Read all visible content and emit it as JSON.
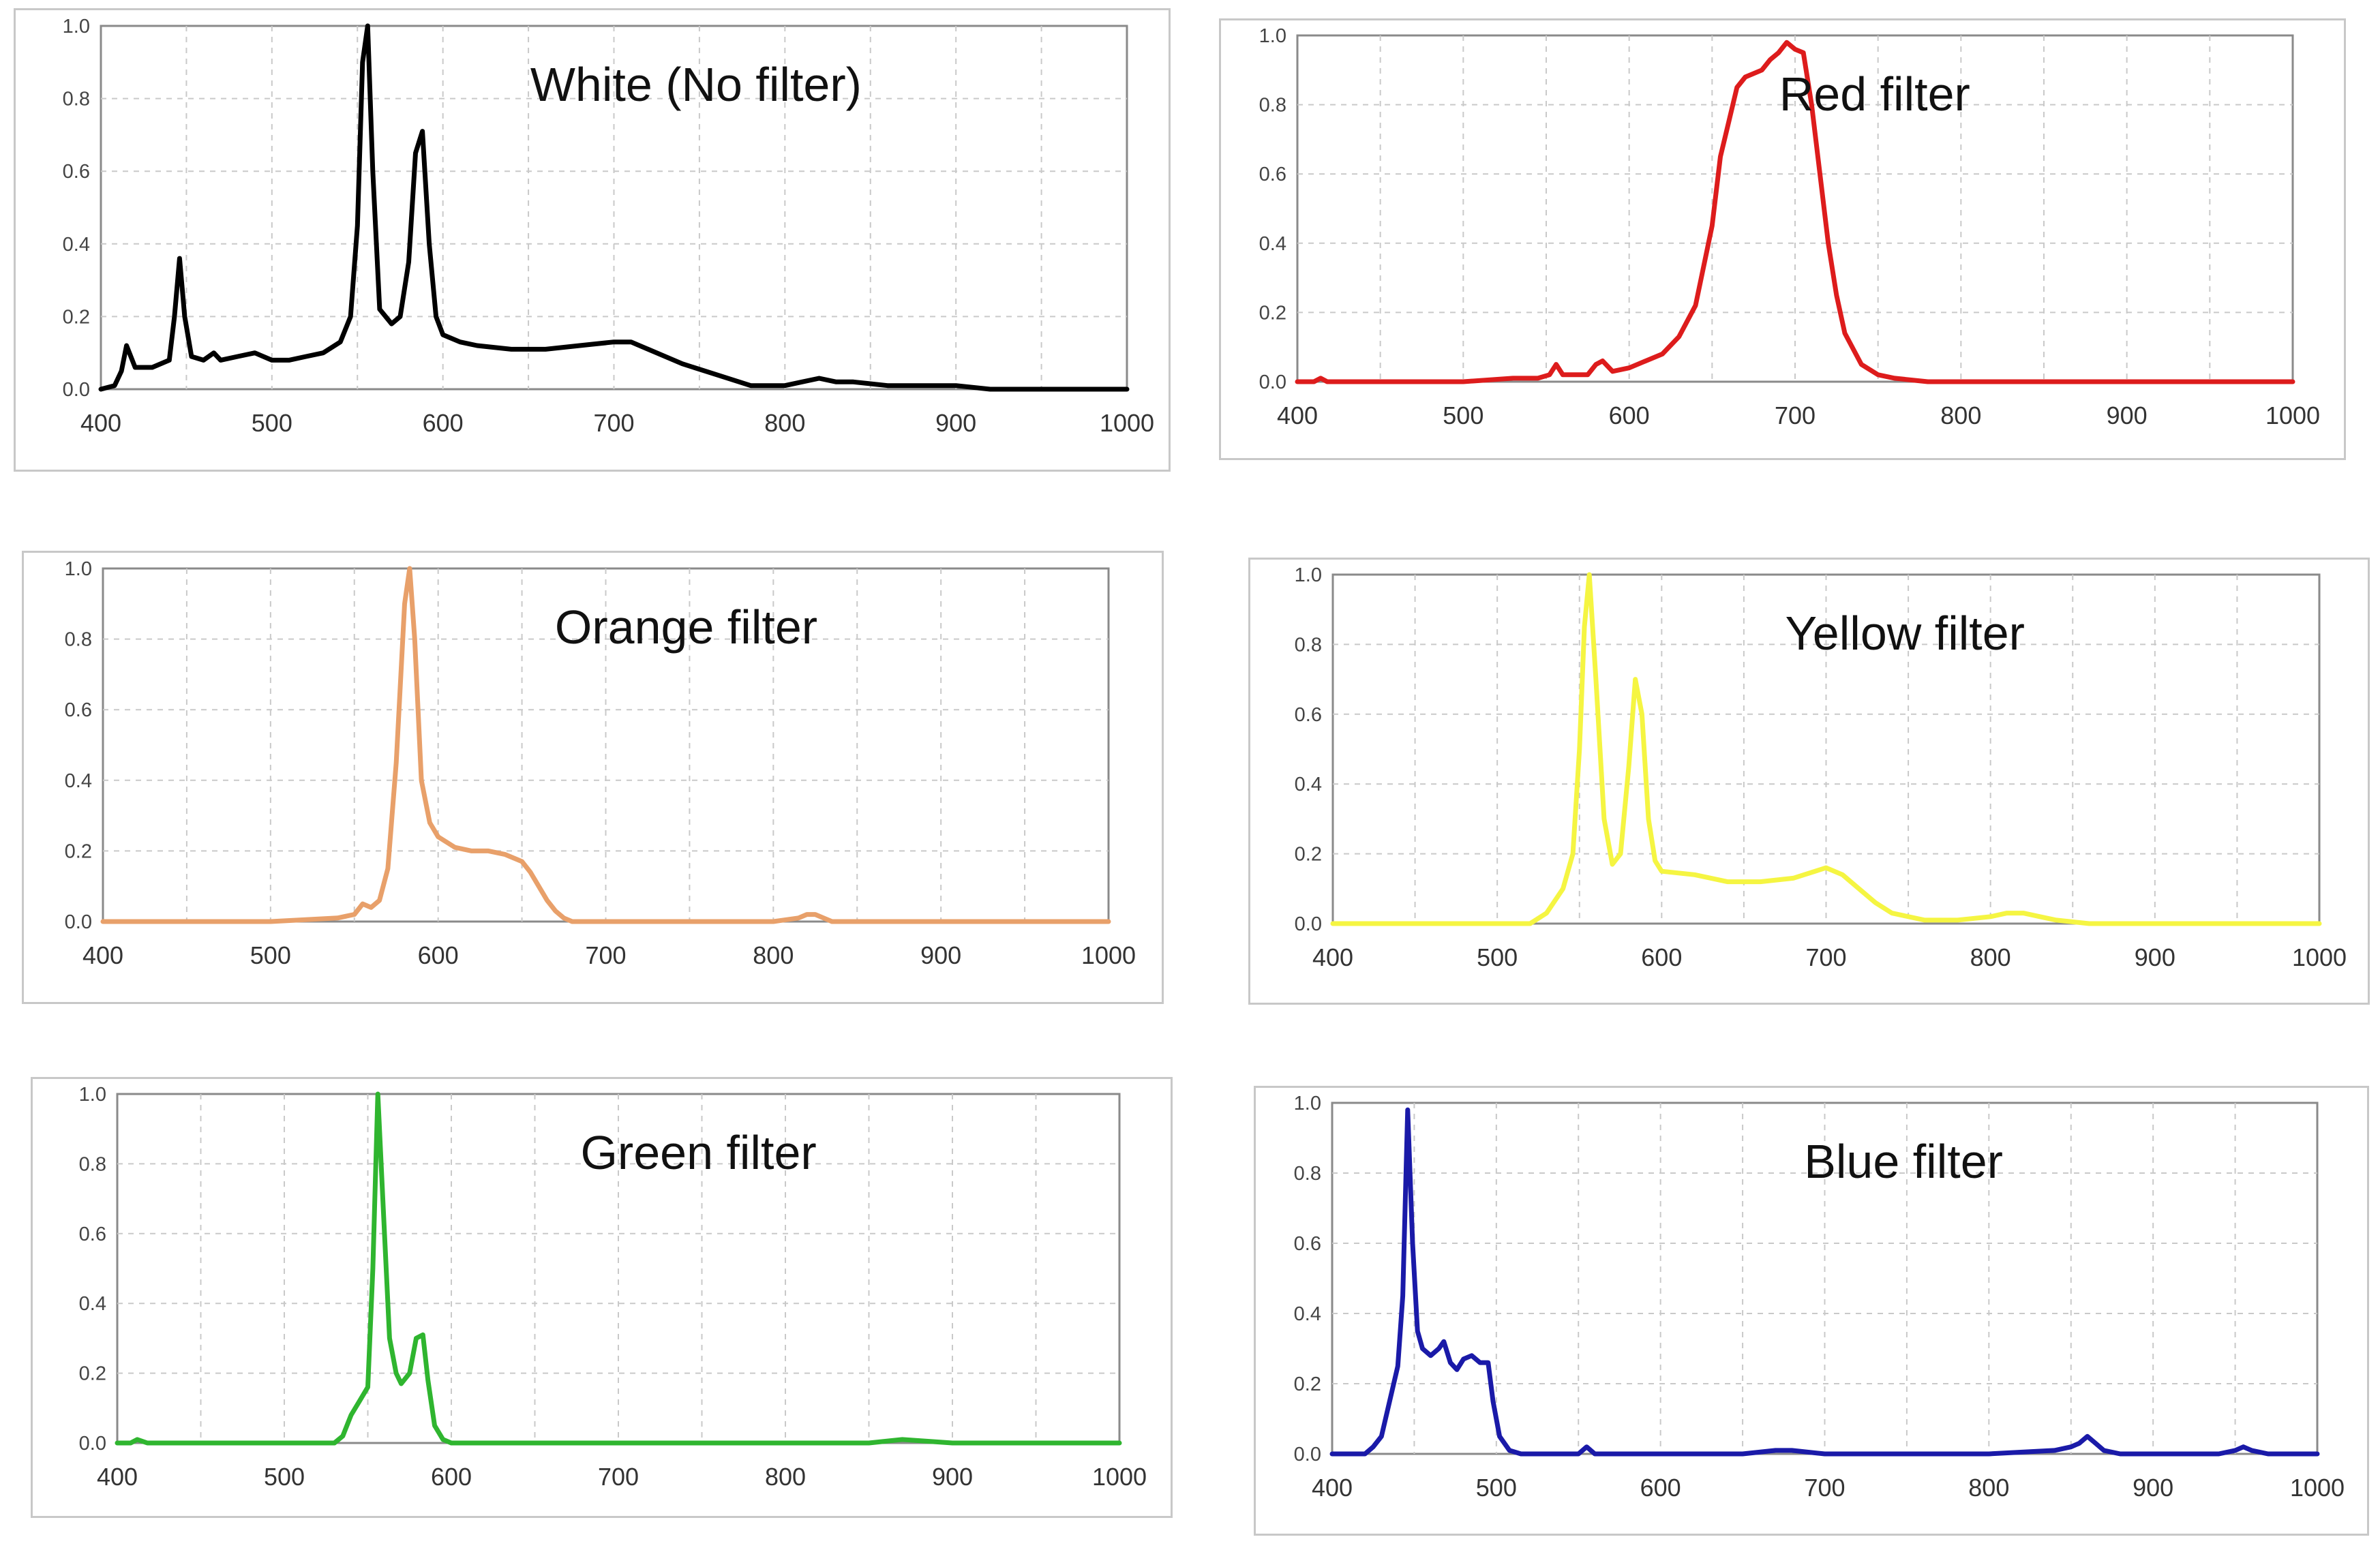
{
  "chart_data": [
    {
      "type": "line",
      "title": "White (No filter)",
      "xlabel": "",
      "ylabel": "",
      "xlim": [
        400,
        1000
      ],
      "ylim": [
        0,
        1.0
      ],
      "xticks": [
        "400",
        "500",
        "600",
        "700",
        "800",
        "900",
        "1000"
      ],
      "yticks": [
        "0.0",
        "0.2",
        "0.4",
        "0.6",
        "0.8",
        "1.0"
      ],
      "grid": true,
      "color": "#000000",
      "series": [
        {
          "x": [
            400,
            408,
            412,
            415,
            420,
            430,
            440,
            443,
            446,
            449,
            453,
            460,
            466,
            470,
            480,
            490,
            500,
            510,
            520,
            530,
            540,
            546,
            550,
            553,
            556,
            559,
            563,
            570,
            575,
            580,
            584,
            588,
            592,
            596,
            600,
            610,
            620,
            640,
            660,
            680,
            700,
            710,
            720,
            740,
            760,
            780,
            800,
            810,
            820,
            830,
            840,
            860,
            880,
            900,
            920,
            950,
            1000
          ],
          "y": [
            0.0,
            0.01,
            0.05,
            0.12,
            0.06,
            0.06,
            0.08,
            0.2,
            0.36,
            0.2,
            0.09,
            0.08,
            0.1,
            0.08,
            0.09,
            0.1,
            0.08,
            0.08,
            0.09,
            0.1,
            0.13,
            0.2,
            0.45,
            0.9,
            1.0,
            0.6,
            0.22,
            0.18,
            0.2,
            0.35,
            0.65,
            0.71,
            0.4,
            0.2,
            0.15,
            0.13,
            0.12,
            0.11,
            0.11,
            0.12,
            0.13,
            0.13,
            0.11,
            0.07,
            0.04,
            0.01,
            0.01,
            0.02,
            0.03,
            0.02,
            0.02,
            0.01,
            0.01,
            0.01,
            0.0,
            0.0,
            0.0
          ]
        }
      ]
    },
    {
      "type": "line",
      "title": "Red filter",
      "xlabel": "",
      "ylabel": "",
      "xlim": [
        400,
        1000
      ],
      "ylim": [
        0,
        1.0
      ],
      "xticks": [
        "400",
        "500",
        "600",
        "700",
        "800",
        "900",
        "1000"
      ],
      "yticks": [
        "0.0",
        "0.2",
        "0.4",
        "0.6",
        "0.8",
        "1.0"
      ],
      "grid": true,
      "color": "#dd1c1c",
      "series": [
        {
          "x": [
            400,
            410,
            414,
            418,
            500,
            530,
            545,
            552,
            556,
            560,
            575,
            580,
            584,
            590,
            600,
            610,
            620,
            630,
            640,
            650,
            655,
            660,
            665,
            670,
            680,
            685,
            690,
            695,
            700,
            705,
            710,
            715,
            720,
            725,
            730,
            740,
            750,
            760,
            780,
            800,
            850,
            900,
            950,
            1000
          ],
          "y": [
            0.0,
            0.0,
            0.01,
            0.0,
            0.0,
            0.01,
            0.01,
            0.02,
            0.05,
            0.02,
            0.02,
            0.05,
            0.06,
            0.03,
            0.04,
            0.06,
            0.08,
            0.13,
            0.22,
            0.45,
            0.65,
            0.75,
            0.85,
            0.88,
            0.9,
            0.93,
            0.95,
            0.98,
            0.96,
            0.95,
            0.8,
            0.6,
            0.4,
            0.25,
            0.14,
            0.05,
            0.02,
            0.01,
            0.0,
            0.0,
            0.0,
            0.0,
            0.0,
            0.0
          ]
        }
      ]
    },
    {
      "type": "line",
      "title": "Orange filter",
      "xlabel": "",
      "ylabel": "",
      "xlim": [
        400,
        1000
      ],
      "ylim": [
        0,
        1.0
      ],
      "xticks": [
        "400",
        "500",
        "600",
        "700",
        "800",
        "900",
        "1000"
      ],
      "yticks": [
        "0.0",
        "0.2",
        "0.4",
        "0.6",
        "0.8",
        "1.0"
      ],
      "grid": true,
      "color": "#e8a06a",
      "series": [
        {
          "x": [
            400,
            500,
            540,
            550,
            555,
            560,
            565,
            570,
            575,
            580,
            583,
            586,
            590,
            595,
            600,
            610,
            620,
            630,
            640,
            650,
            655,
            660,
            665,
            670,
            675,
            680,
            690,
            700,
            800,
            815,
            820,
            825,
            830,
            835,
            850,
            900,
            950,
            1000
          ],
          "y": [
            0.0,
            0.0,
            0.01,
            0.02,
            0.05,
            0.04,
            0.06,
            0.15,
            0.45,
            0.9,
            1.0,
            0.8,
            0.4,
            0.28,
            0.24,
            0.21,
            0.2,
            0.2,
            0.19,
            0.17,
            0.14,
            0.1,
            0.06,
            0.03,
            0.01,
            0.0,
            0.0,
            0.0,
            0.0,
            0.01,
            0.02,
            0.02,
            0.01,
            0.0,
            0.0,
            0.0,
            0.0,
            0.0
          ]
        }
      ]
    },
    {
      "type": "line",
      "title": "Yellow filter",
      "xlabel": "",
      "ylabel": "",
      "xlim": [
        400,
        1000
      ],
      "ylim": [
        0,
        1.0
      ],
      "xticks": [
        "400",
        "500",
        "600",
        "700",
        "800",
        "900",
        "1000"
      ],
      "yticks": [
        "0.0",
        "0.2",
        "0.4",
        "0.6",
        "0.8",
        "1.0"
      ],
      "grid": true,
      "color": "#f5f542",
      "series": [
        {
          "x": [
            400,
            500,
            520,
            530,
            540,
            546,
            550,
            553,
            556,
            560,
            565,
            570,
            575,
            580,
            584,
            588,
            592,
            596,
            600,
            620,
            640,
            660,
            680,
            700,
            710,
            720,
            730,
            740,
            760,
            780,
            800,
            810,
            820,
            830,
            840,
            860,
            880,
            900,
            950,
            1000
          ],
          "y": [
            0.0,
            0.0,
            0.0,
            0.03,
            0.1,
            0.2,
            0.5,
            0.85,
            1.0,
            0.7,
            0.3,
            0.17,
            0.2,
            0.45,
            0.7,
            0.6,
            0.3,
            0.18,
            0.15,
            0.14,
            0.12,
            0.12,
            0.13,
            0.16,
            0.14,
            0.1,
            0.06,
            0.03,
            0.01,
            0.01,
            0.02,
            0.03,
            0.03,
            0.02,
            0.01,
            0.0,
            0.0,
            0.0,
            0.0,
            0.0
          ]
        }
      ]
    },
    {
      "type": "line",
      "title": "Green filter",
      "xlabel": "",
      "ylabel": "",
      "xlim": [
        400,
        1000
      ],
      "ylim": [
        0,
        1.0
      ],
      "xticks": [
        "400",
        "500",
        "600",
        "700",
        "800",
        "900",
        "1000"
      ],
      "yticks": [
        "0.0",
        "0.2",
        "0.4",
        "0.6",
        "0.8",
        "1.0"
      ],
      "grid": true,
      "color": "#2fb52f",
      "series": [
        {
          "x": [
            400,
            408,
            412,
            418,
            430,
            500,
            530,
            535,
            540,
            545,
            550,
            553,
            556,
            559,
            563,
            567,
            570,
            575,
            579,
            583,
            586,
            590,
            595,
            600,
            650,
            700,
            750,
            800,
            850,
            870,
            900,
            950,
            1000
          ],
          "y": [
            0.0,
            0.0,
            0.01,
            0.0,
            0.0,
            0.0,
            0.0,
            0.02,
            0.08,
            0.12,
            0.16,
            0.5,
            1.0,
            0.7,
            0.3,
            0.2,
            0.17,
            0.2,
            0.3,
            0.31,
            0.18,
            0.05,
            0.01,
            0.0,
            0.0,
            0.0,
            0.0,
            0.0,
            0.0,
            0.01,
            0.0,
            0.0,
            0.0
          ]
        }
      ]
    },
    {
      "type": "line",
      "title": "Blue filter",
      "xlabel": "",
      "ylabel": "",
      "xlim": [
        400,
        1000
      ],
      "ylim": [
        0,
        1.0
      ],
      "xticks": [
        "400",
        "500",
        "600",
        "700",
        "800",
        "900",
        "1000"
      ],
      "yticks": [
        "0.0",
        "0.2",
        "0.4",
        "0.6",
        "0.8",
        "1.0"
      ],
      "grid": true,
      "color": "#1a1aa8",
      "series": [
        {
          "x": [
            400,
            420,
            425,
            430,
            435,
            440,
            443,
            446,
            449,
            452,
            455,
            460,
            465,
            468,
            472,
            476,
            480,
            485,
            490,
            495,
            498,
            502,
            508,
            515,
            550,
            555,
            560,
            600,
            650,
            670,
            680,
            700,
            800,
            840,
            850,
            855,
            860,
            865,
            870,
            880,
            900,
            940,
            950,
            955,
            960,
            970,
            1000
          ],
          "y": [
            0.0,
            0.0,
            0.02,
            0.05,
            0.15,
            0.25,
            0.45,
            0.98,
            0.6,
            0.35,
            0.3,
            0.28,
            0.3,
            0.32,
            0.26,
            0.24,
            0.27,
            0.28,
            0.26,
            0.26,
            0.15,
            0.05,
            0.01,
            0.0,
            0.0,
            0.02,
            0.0,
            0.0,
            0.0,
            0.01,
            0.01,
            0.0,
            0.0,
            0.01,
            0.02,
            0.03,
            0.05,
            0.03,
            0.01,
            0.0,
            0.0,
            0.0,
            0.01,
            0.02,
            0.01,
            0.0,
            0.0
          ]
        }
      ]
    }
  ]
}
